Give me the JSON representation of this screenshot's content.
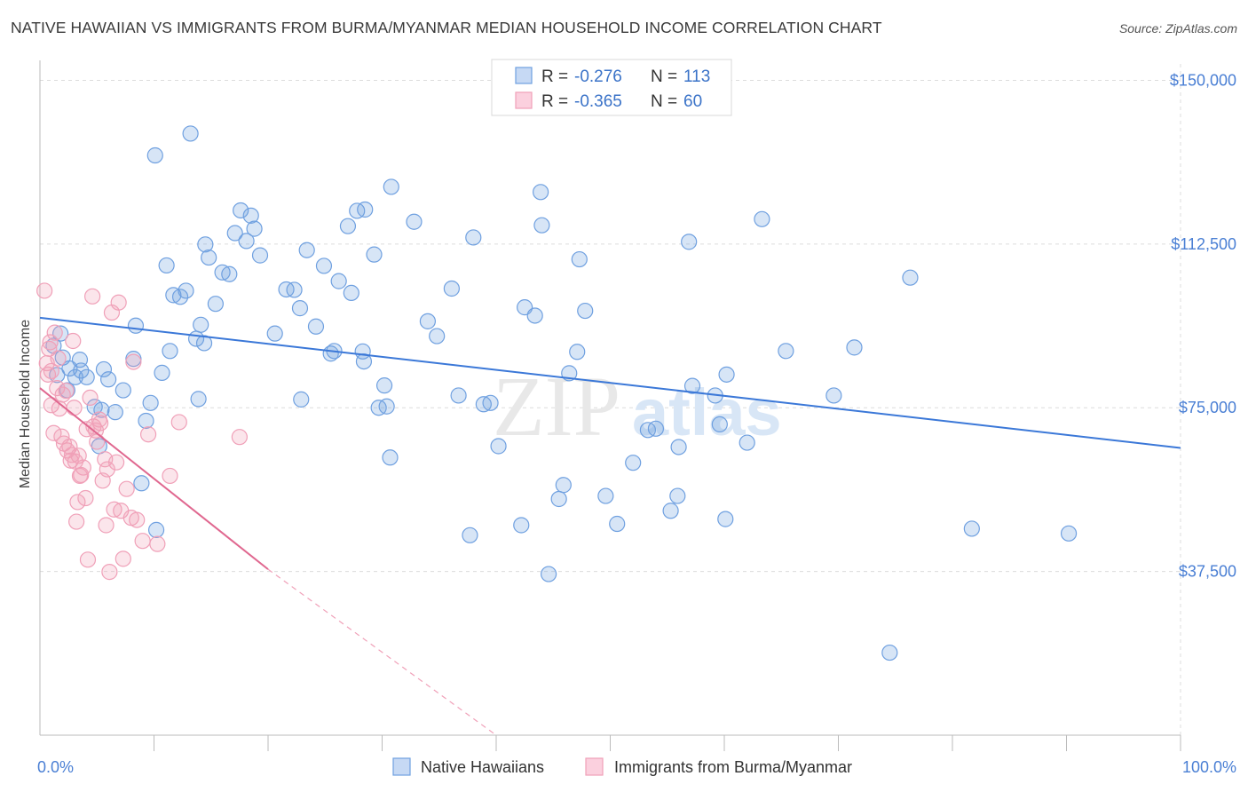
{
  "title": "NATIVE HAWAIIAN VS IMMIGRANTS FROM BURMA/MYANMAR MEDIAN HOUSEHOLD INCOME CORRELATION CHART",
  "source": "Source: ZipAtlas.com",
  "watermark": "ZIPatlas",
  "colors": {
    "blue": "#6fa0e0",
    "blue_line": "#3b78d8",
    "pink": "#f0a0b8",
    "pink_line": "#e06890",
    "axis_text": "#4a7fd4"
  },
  "legend": {
    "rows": [
      {
        "r_label": "R =",
        "r_value": "-0.276",
        "n_label": "N =",
        "n_value": "113"
      },
      {
        "r_label": "R =",
        "r_value": "-0.365",
        "n_label": "N =",
        "n_value": "60"
      }
    ]
  },
  "bottom_legend": [
    "Native Hawaiians",
    "Immigrants from Burma/Myanmar"
  ],
  "chart_data": {
    "type": "scatter",
    "ylabel": "Median Household Income",
    "xlim": [
      0,
      100
    ],
    "ylim": [
      0,
      153750
    ],
    "y_ticks": [
      {
        "value": 37500,
        "label": "$37,500"
      },
      {
        "value": 75000,
        "label": "$75,000"
      },
      {
        "value": 112500,
        "label": "$112,500"
      },
      {
        "value": 150000,
        "label": "$150,000"
      }
    ],
    "x_tick_labels": [
      {
        "value": 0,
        "label": "0.0%"
      },
      {
        "value": 100,
        "label": "100.0%"
      }
    ],
    "x_minor_ticks": [
      10,
      20,
      30,
      40,
      50,
      60,
      70,
      80,
      90,
      100
    ],
    "grid": true,
    "series": [
      {
        "name": "Native Hawaiians",
        "trend": {
          "x0": 0,
          "y0": 95600,
          "x1": 100,
          "y1": 65800
        },
        "points": [
          [
            1.2,
            89200
          ],
          [
            1.5,
            82500
          ],
          [
            1.8,
            92000
          ],
          [
            2.0,
            86500
          ],
          [
            2.4,
            79000
          ],
          [
            2.6,
            84000
          ],
          [
            3.1,
            82000
          ],
          [
            3.5,
            86000
          ],
          [
            3.6,
            83500
          ],
          [
            4.1,
            82000
          ],
          [
            4.8,
            75200
          ],
          [
            5.2,
            66200
          ],
          [
            5.4,
            74500
          ],
          [
            5.6,
            83800
          ],
          [
            6.0,
            81500
          ],
          [
            6.6,
            74000
          ],
          [
            7.3,
            79000
          ],
          [
            8.2,
            86200
          ],
          [
            8.4,
            93800
          ],
          [
            8.9,
            57700
          ],
          [
            9.3,
            72000
          ],
          [
            9.7,
            76100
          ],
          [
            10.2,
            47000
          ],
          [
            10.7,
            83000
          ],
          [
            11.1,
            107600
          ],
          [
            11.4,
            88000
          ],
          [
            11.7,
            100800
          ],
          [
            12.3,
            100400
          ],
          [
            12.8,
            101800
          ],
          [
            13.7,
            90800
          ],
          [
            14.1,
            94000
          ],
          [
            14.4,
            89800
          ],
          [
            14.5,
            112400
          ],
          [
            14.8,
            109400
          ],
          [
            15.4,
            98800
          ],
          [
            16.0,
            106000
          ],
          [
            16.6,
            105600
          ],
          [
            17.1,
            115000
          ],
          [
            17.6,
            120200
          ],
          [
            18.1,
            113200
          ],
          [
            18.5,
            119000
          ],
          [
            18.8,
            116000
          ],
          [
            19.3,
            109900
          ],
          [
            20.6,
            92000
          ],
          [
            21.6,
            102100
          ],
          [
            22.3,
            102000
          ],
          [
            22.8,
            97800
          ],
          [
            22.9,
            76900
          ],
          [
            23.4,
            111100
          ],
          [
            24.2,
            93600
          ],
          [
            24.9,
            107500
          ],
          [
            25.5,
            87400
          ],
          [
            25.8,
            88000
          ],
          [
            26.2,
            104000
          ],
          [
            27.3,
            101300
          ],
          [
            27.8,
            120100
          ],
          [
            28.3,
            87900
          ],
          [
            27.0,
            116600
          ],
          [
            28.4,
            85600
          ],
          [
            29.3,
            110100
          ],
          [
            29.7,
            75000
          ],
          [
            30.2,
            80100
          ],
          [
            30.4,
            75300
          ],
          [
            30.7,
            63600
          ],
          [
            32.8,
            117600
          ],
          [
            34.0,
            94800
          ],
          [
            34.8,
            91400
          ],
          [
            36.1,
            102300
          ],
          [
            36.7,
            77800
          ],
          [
            37.7,
            45800
          ],
          [
            38.0,
            114000
          ],
          [
            38.9,
            75800
          ],
          [
            39.5,
            76100
          ],
          [
            40.2,
            66200
          ],
          [
            42.2,
            48100
          ],
          [
            42.5,
            98000
          ],
          [
            43.4,
            96100
          ],
          [
            43.9,
            124400
          ],
          [
            44.0,
            116800
          ],
          [
            44.6,
            36900
          ],
          [
            45.5,
            54100
          ],
          [
            45.9,
            57300
          ],
          [
            46.4,
            82900
          ],
          [
            47.1,
            87800
          ],
          [
            47.3,
            109000
          ],
          [
            47.8,
            97200
          ],
          [
            49.6,
            54800
          ],
          [
            50.6,
            48400
          ],
          [
            52.0,
            62400
          ],
          [
            53.3,
            69900
          ],
          [
            54.0,
            70200
          ],
          [
            55.3,
            51400
          ],
          [
            55.9,
            54800
          ],
          [
            56.9,
            113000
          ],
          [
            57.2,
            80000
          ],
          [
            59.2,
            77800
          ],
          [
            59.6,
            71200
          ],
          [
            60.1,
            49500
          ],
          [
            60.2,
            82600
          ],
          [
            62.0,
            67000
          ],
          [
            63.3,
            118200
          ],
          [
            65.4,
            88000
          ],
          [
            69.6,
            77800
          ],
          [
            71.4,
            88800
          ],
          [
            76.3,
            104800
          ],
          [
            81.7,
            47300
          ],
          [
            90.2,
            46200
          ],
          [
            28.5,
            120400
          ],
          [
            13.2,
            137800
          ],
          [
            10.1,
            132800
          ],
          [
            30.8,
            125600
          ],
          [
            74.5,
            18900
          ],
          [
            13.9,
            77000
          ],
          [
            56.0,
            66000
          ]
        ]
      },
      {
        "name": "Immigrants from Burma/Myanmar",
        "trend": {
          "x0": 0,
          "y0": 79500,
          "x1": 20,
          "y1": 38000
        },
        "trend_dashed": {
          "x0": 20,
          "y0": 38000,
          "x1": 40,
          "y1": 0
        },
        "points": [
          [
            0.4,
            101800
          ],
          [
            0.6,
            85200
          ],
          [
            0.7,
            82600
          ],
          [
            0.9,
            90000
          ],
          [
            1.0,
            75600
          ],
          [
            1.2,
            69200
          ],
          [
            1.3,
            92200
          ],
          [
            1.5,
            79500
          ],
          [
            1.7,
            74800
          ],
          [
            1.9,
            68400
          ],
          [
            2.1,
            66800
          ],
          [
            2.3,
            78900
          ],
          [
            2.4,
            65200
          ],
          [
            2.6,
            66100
          ],
          [
            2.8,
            64200
          ],
          [
            2.9,
            90300
          ],
          [
            3.0,
            75000
          ],
          [
            3.1,
            62700
          ],
          [
            3.2,
            48900
          ],
          [
            3.3,
            53400
          ],
          [
            3.5,
            59400
          ],
          [
            3.6,
            59600
          ],
          [
            3.8,
            61300
          ],
          [
            4.0,
            54300
          ],
          [
            4.2,
            40200
          ],
          [
            4.4,
            77300
          ],
          [
            4.6,
            100500
          ],
          [
            4.7,
            70700
          ],
          [
            4.9,
            69800
          ],
          [
            5.0,
            67200
          ],
          [
            5.2,
            72300
          ],
          [
            5.3,
            71500
          ],
          [
            5.5,
            58300
          ],
          [
            5.7,
            63200
          ],
          [
            5.9,
            60900
          ],
          [
            6.1,
            37400
          ],
          [
            6.3,
            96800
          ],
          [
            6.5,
            51700
          ],
          [
            6.7,
            62500
          ],
          [
            6.9,
            99100
          ],
          [
            7.1,
            51400
          ],
          [
            7.3,
            40400
          ],
          [
            7.6,
            56400
          ],
          [
            8.0,
            49800
          ],
          [
            8.2,
            85500
          ],
          [
            8.5,
            49300
          ],
          [
            9.0,
            44500
          ],
          [
            9.5,
            68900
          ],
          [
            10.3,
            43800
          ],
          [
            11.4,
            59400
          ],
          [
            12.2,
            71700
          ],
          [
            17.5,
            68300
          ],
          [
            1.0,
            83400
          ],
          [
            2.0,
            78000
          ],
          [
            3.4,
            64000
          ],
          [
            4.1,
            70100
          ],
          [
            1.6,
            86300
          ],
          [
            5.8,
            48100
          ],
          [
            2.7,
            62900
          ],
          [
            0.8,
            88500
          ]
        ]
      }
    ]
  }
}
